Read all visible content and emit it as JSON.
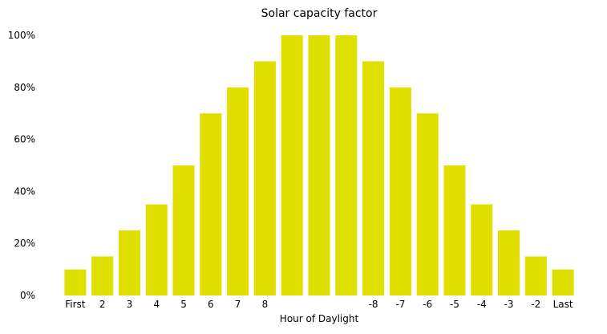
{
  "chart_data": {
    "type": "bar",
    "title": "Solar capacity factor",
    "xlabel": "Hour of Daylight",
    "ylabel": "",
    "categories": [
      "First",
      "2",
      "3",
      "4",
      "5",
      "6",
      "7",
      "8",
      "",
      "",
      "",
      "-8",
      "-7",
      "-6",
      "-5",
      "-4",
      "-3",
      "-2",
      "Last"
    ],
    "values": [
      0.1,
      0.15,
      0.25,
      0.35,
      0.5,
      0.7,
      0.8,
      0.9,
      1.0,
      1.0,
      1.0,
      0.9,
      0.8,
      0.7,
      0.5,
      0.35,
      0.25,
      0.15,
      0.1
    ],
    "ylim": [
      0,
      1
    ],
    "yticks": [
      0,
      0.2,
      0.4,
      0.6,
      0.8,
      1.0
    ],
    "ytick_labels": [
      "0%",
      "20%",
      "40%",
      "60%",
      "80%",
      "100%"
    ],
    "grid": false,
    "legend": "none",
    "bar_color": "#e0e000"
  }
}
